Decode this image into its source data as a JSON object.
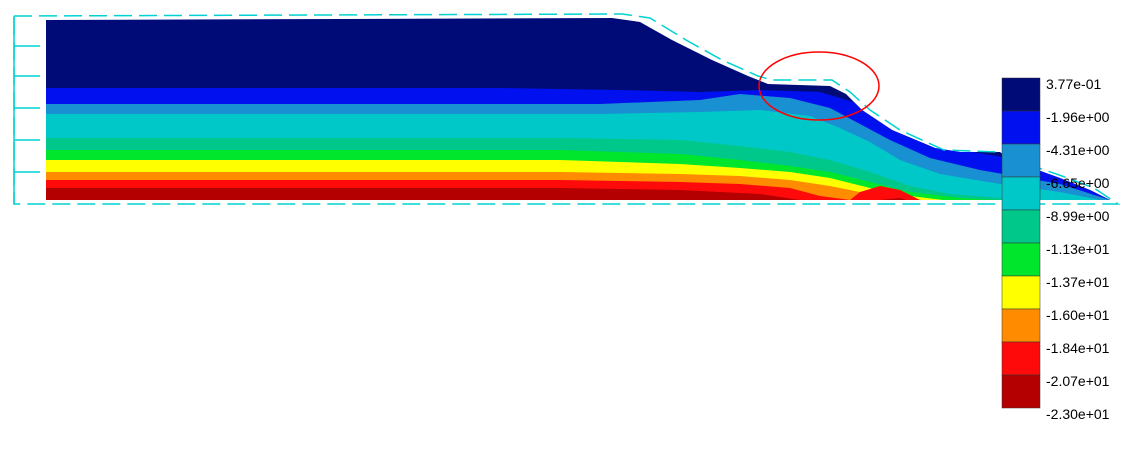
{
  "legend": {
    "levels": [
      {
        "label": "3.77e-01",
        "color": "#000b78"
      },
      {
        "label": "-1.96e+00",
        "color": "#0010ee"
      },
      {
        "label": "-4.31e+00",
        "color": "#1890d2"
      },
      {
        "label": "-6.65e+00",
        "color": "#00c8c8"
      },
      {
        "label": "-8.99e+00",
        "color": "#00c88a"
      },
      {
        "label": "-1.13e+01",
        "color": "#00e62c"
      },
      {
        "label": "-1.37e+01",
        "color": "#ffff00"
      },
      {
        "label": "-1.60e+01",
        "color": "#ff8c00"
      },
      {
        "label": "-1.84e+01",
        "color": "#ff0a0a"
      },
      {
        "label": "-2.07e+01",
        "color": "#b40000"
      },
      {
        "label": "-2.30e+01",
        "color": "#ffffff"
      }
    ]
  },
  "colors": {
    "outline": "#00d2d2",
    "highlight_circle": "#ff0000"
  }
}
